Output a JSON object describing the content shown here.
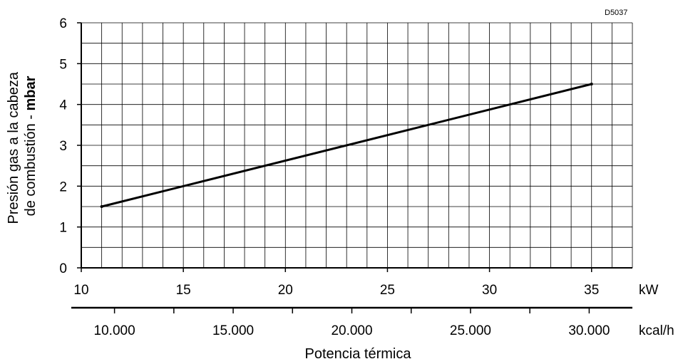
{
  "chart_data": {
    "type": "line",
    "code": "D5037",
    "ylabel_line1": "Presión gas a la cabeza",
    "ylabel_line2_prefix": "de combustión - ",
    "ylabel_line2_bold": "mbar",
    "xlabel": "Potencia térmica",
    "x_unit": "kW",
    "x2_unit": "kcal/h",
    "xlim": [
      10,
      37
    ],
    "ylim": [
      0,
      6
    ],
    "x_ticks": [
      10,
      15,
      20,
      25,
      30,
      35
    ],
    "x_tick_labels": [
      "10",
      "15",
      "20",
      "25",
      "30",
      "35"
    ],
    "y_ticks": [
      0,
      1,
      2,
      3,
      4,
      5,
      6
    ],
    "y_tick_labels": [
      "0",
      "1",
      "2",
      "3",
      "4",
      "5",
      "6"
    ],
    "x2_ticks_kcal": [
      10000,
      15000,
      20000,
      25000,
      30000
    ],
    "x2_tick_labels": [
      "10.000",
      "15.000",
      "20.000",
      "25.000",
      "30.000"
    ],
    "grid": true,
    "series": [
      {
        "x": [
          11,
          35
        ],
        "y": [
          1.5,
          4.5
        ]
      }
    ]
  }
}
